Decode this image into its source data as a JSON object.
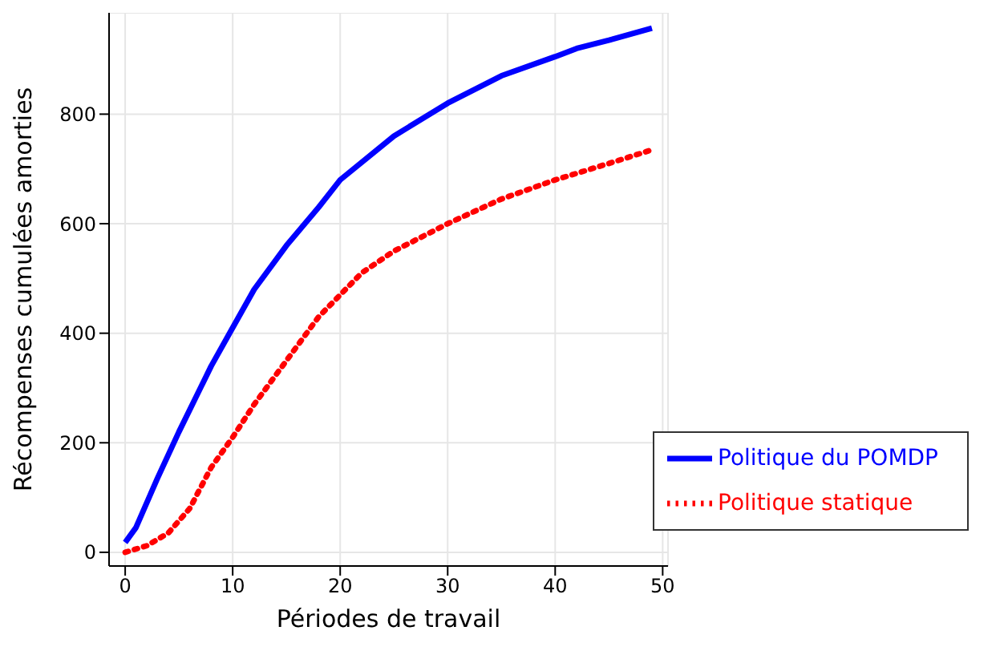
{
  "chart_data": {
    "type": "line",
    "xlabel": "Périodes de travail",
    "ylabel": "Récompenses cumulées amorties",
    "xlim": [
      -1.5,
      50.5
    ],
    "xticks": [
      0,
      10,
      20,
      30,
      40,
      50
    ],
    "ylim": [
      -25,
      985
    ],
    "yticks": [
      0,
      200,
      400,
      600,
      800
    ],
    "grid": true,
    "legend": "bottom right",
    "marker": "none",
    "series": [
      {
        "name": "Politique du POMDP",
        "color": "#0000ff",
        "line_style": "solid",
        "x": [
          0,
          1,
          3,
          5,
          8,
          10,
          12,
          15,
          18,
          20,
          25,
          30,
          35,
          40,
          42,
          45,
          49
        ],
        "values": [
          18,
          45,
          135,
          220,
          340,
          410,
          480,
          560,
          630,
          680,
          760,
          820,
          870,
          905,
          920,
          935,
          957
        ]
      },
      {
        "name": "Politique statique",
        "color": "#ff0000",
        "line_style": "dotted",
        "x": [
          0,
          2,
          4,
          6,
          8,
          10,
          12,
          15,
          18,
          20,
          22,
          25,
          30,
          35,
          40,
          45,
          49
        ],
        "values": [
          0,
          12,
          35,
          80,
          155,
          210,
          270,
          350,
          430,
          470,
          510,
          550,
          600,
          645,
          680,
          710,
          735
        ]
      }
    ]
  }
}
